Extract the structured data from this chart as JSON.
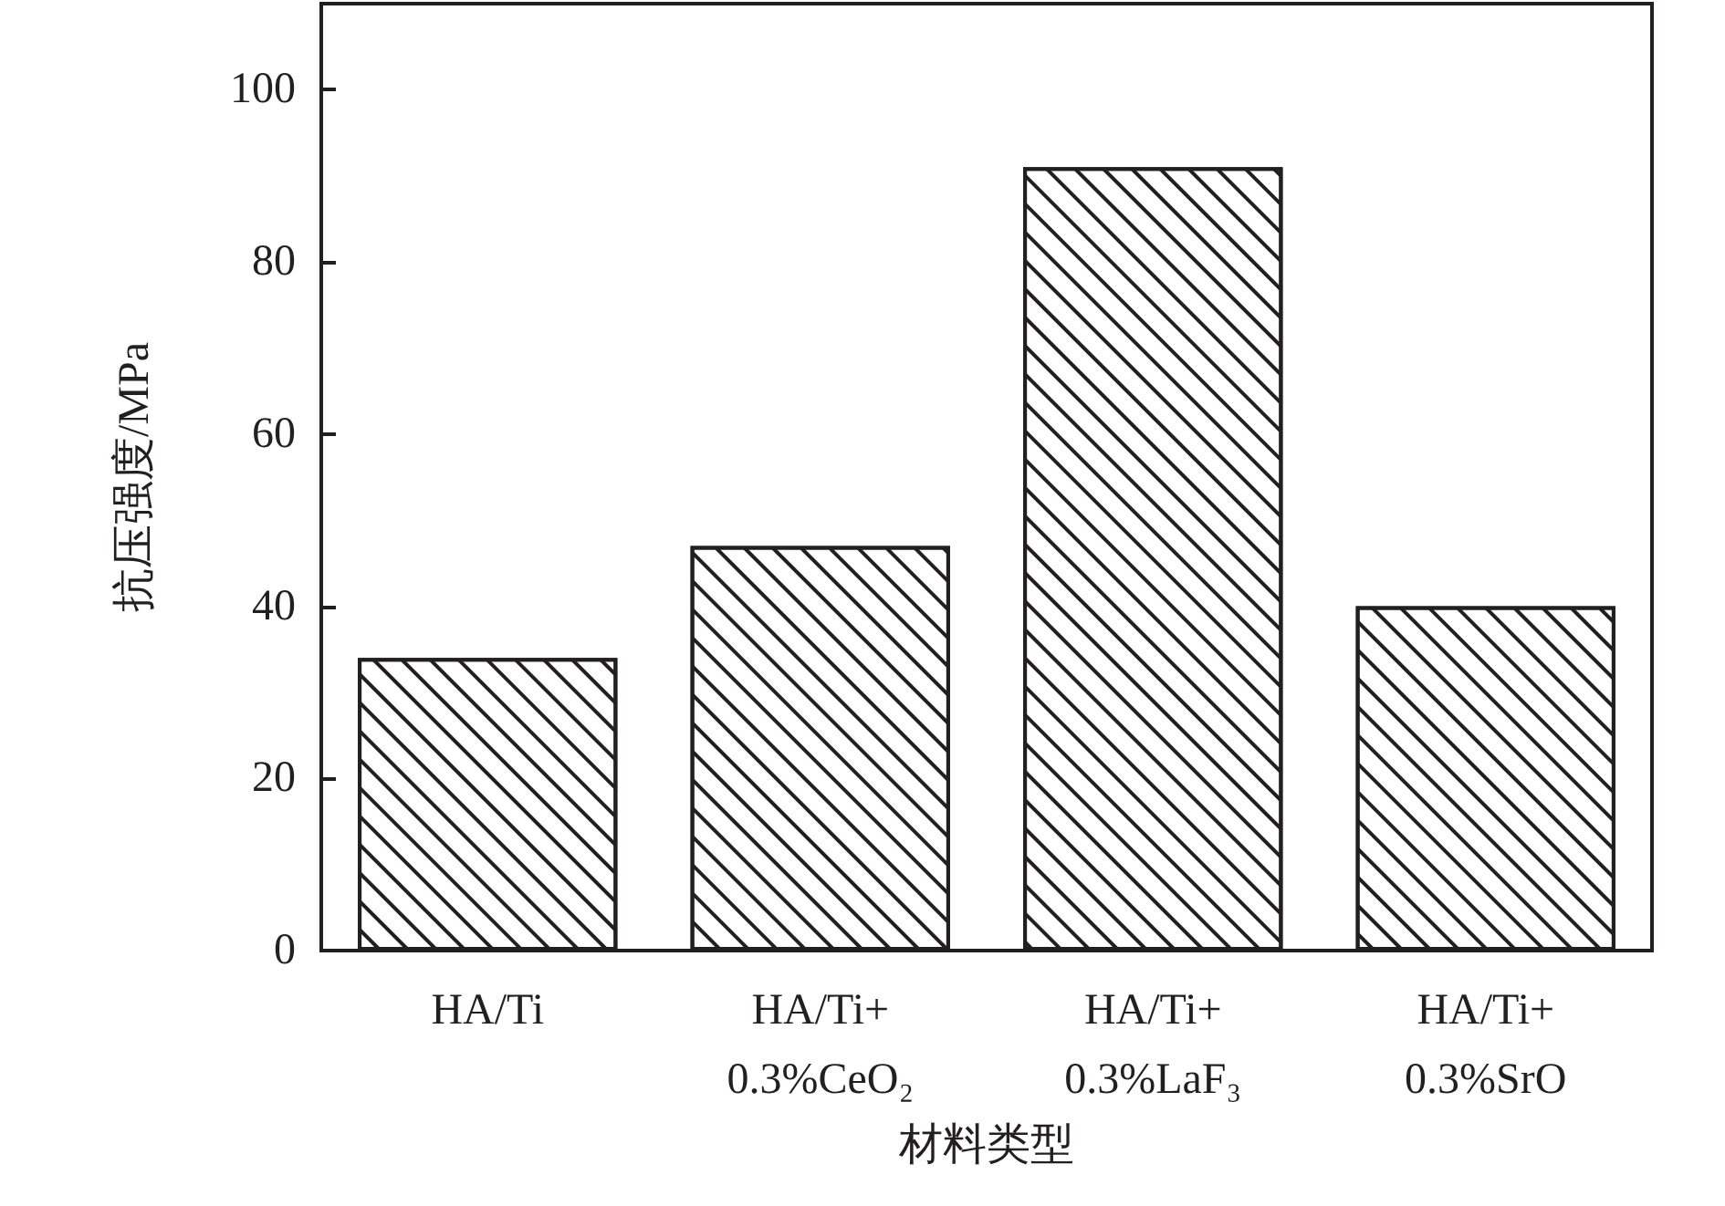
{
  "chart_data": {
    "type": "bar",
    "xlabel": "材料类型",
    "ylabel": "抗压强度/MPa",
    "categories": [
      "HA/Ti",
      "HA/Ti+\n0.3%CeO₂",
      "HA/Ti+\n0.3%LaF₃",
      "HA/Ti+\n0.3%SrO"
    ],
    "values": [
      34,
      47,
      91,
      40
    ],
    "color": "#ffffff",
    "ylim": [
      0,
      110
    ],
    "yticks": [
      0,
      20,
      40,
      60,
      80,
      100
    ],
    "grid": false
  }
}
